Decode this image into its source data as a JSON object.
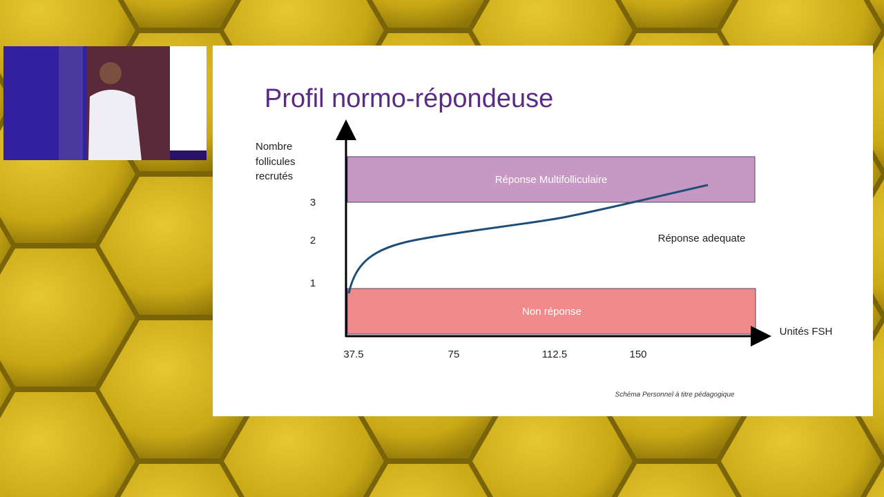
{
  "slide": {
    "title": "Profil normo-répondeuse",
    "y_axis_label": [
      "Nombre",
      "follicules",
      "recrutés"
    ],
    "x_axis_label": "Unités FSH",
    "y_tick_labels": [
      "3",
      "2",
      "1"
    ],
    "x_tick_labels": [
      "37.5",
      "75",
      "112.5",
      "150"
    ],
    "zones": {
      "top": "Réponse Multifolliculaire",
      "middle": "Réponse adequate",
      "bottom": "Non réponse"
    },
    "footnote": "Schéma Personnel à titre pédagogique"
  }
}
